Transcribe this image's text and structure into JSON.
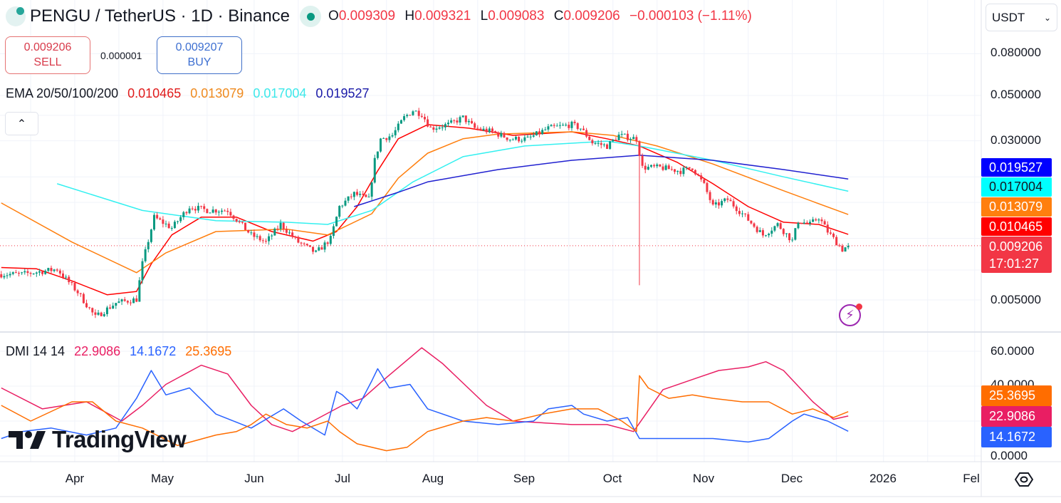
{
  "header": {
    "symbol_title": "PENGU / TetherUS · 1D · Binance",
    "ohlc": {
      "o_label": "O",
      "o": "0.009309",
      "h_label": "H",
      "h": "0.009321",
      "l_label": "L",
      "l": "0.009083",
      "c_label": "C",
      "c": "0.009206",
      "change": "−0.000103 (−1.11%)"
    }
  },
  "trade": {
    "sell_price": "0.009206",
    "sell_label": "SELL",
    "spread": "0.000001",
    "buy_price": "0.009207",
    "buy_label": "BUY"
  },
  "currency_select": {
    "value": "USDT"
  },
  "ema_legend": {
    "name": "EMA 20/50/100/200",
    "v20": "0.010465",
    "v50": "0.013079",
    "v100": "0.017004",
    "v200": "0.019527"
  },
  "dmi_legend": {
    "name": "DMI 14 14",
    "adx": "22.9086",
    "plus_di": "14.1672",
    "minus_di": "25.3695"
  },
  "price_axis": {
    "ticks": [
      "0.080000",
      "0.050000",
      "0.030000",
      "0.005000"
    ],
    "scale": "log"
  },
  "price_tags": {
    "ema200": "0.019527",
    "ema100": "0.017004",
    "ema50": "0.013079",
    "ema20": "0.010465",
    "last": "0.009206",
    "countdown": "17:01:27"
  },
  "dmi_axis": {
    "ticks": [
      "60.0000",
      "40.0000",
      "0.0000"
    ]
  },
  "dmi_tags": {
    "minus_di": "25.3695",
    "adx": "22.9086",
    "plus_di": "14.1672"
  },
  "time_axis": {
    "labels": [
      "Apr",
      "May",
      "Jun",
      "Jul",
      "Aug",
      "Sep",
      "Oct",
      "Nov",
      "Dec",
      "2026",
      "Fel"
    ]
  },
  "watermark": "TradingView",
  "colors": {
    "up": "#089981",
    "down": "#f23645",
    "ema20": "#ff0000",
    "ema50": "#ff7f0e",
    "ema100": "#33f0f0",
    "ema200": "#2020d0",
    "adx": "#e91e63",
    "plus_di": "#2962ff",
    "minus_di": "#ff6d00",
    "last_price": "#f23645"
  },
  "chart_data": [
    {
      "type": "candlestick",
      "title": "PENGU / TetherUS · 1D · Binance",
      "yscale": "log",
      "ylim": [
        0.0035,
        0.095
      ],
      "x_range": [
        "2025-03-06",
        "2026-02-05"
      ],
      "grid": true,
      "close_keypoints": [
        [
          "2025-03-07",
          0.00668
        ],
        [
          "2025-03-14",
          0.00668
        ],
        [
          "2025-03-26",
          0.00707
        ],
        [
          "2025-04-02",
          0.00546
        ],
        [
          "2025-04-08",
          0.00412
        ],
        [
          "2025-04-15",
          0.00484
        ],
        [
          "2025-04-22",
          0.00504
        ],
        [
          "2025-04-24",
          0.00753
        ],
        [
          "2025-04-28",
          0.01268
        ],
        [
          "2025-05-04",
          0.01124
        ],
        [
          "2025-05-10",
          0.0143
        ],
        [
          "2025-05-16",
          0.01374
        ],
        [
          "2025-05-23",
          0.01374
        ],
        [
          "2025-05-31",
          0.01038
        ],
        [
          "2025-06-05",
          0.00958
        ],
        [
          "2025-06-10",
          0.01171
        ],
        [
          "2025-06-16",
          0.00958
        ],
        [
          "2025-06-22",
          0.00849
        ],
        [
          "2025-06-27",
          0.00997
        ],
        [
          "2025-06-30",
          0.0143
        ],
        [
          "2025-07-05",
          0.01653
        ],
        [
          "2025-07-10",
          0.0155
        ],
        [
          "2025-07-12",
          0.0241
        ],
        [
          "2025-07-14",
          0.03066
        ],
        [
          "2025-07-18",
          0.03191
        ],
        [
          "2025-07-22",
          0.03899
        ],
        [
          "2025-07-25",
          0.04225
        ],
        [
          "2025-07-28",
          0.04058
        ],
        [
          "2025-07-31",
          0.03457
        ],
        [
          "2025-08-06",
          0.036
        ],
        [
          "2025-08-11",
          0.03899
        ],
        [
          "2025-08-15",
          0.03457
        ],
        [
          "2025-08-21",
          0.03322
        ],
        [
          "2025-08-27",
          0.03066
        ],
        [
          "2025-09-02",
          0.03066
        ],
        [
          "2025-09-09",
          0.03457
        ],
        [
          "2025-09-17",
          0.036
        ],
        [
          "2025-09-20",
          0.03457
        ],
        [
          "2025-09-24",
          0.02944
        ],
        [
          "2025-09-29",
          0.02829
        ],
        [
          "2025-10-03",
          0.03191
        ],
        [
          "2025-10-09",
          0.03066
        ],
        [
          "2025-10-11",
          0.02223
        ],
        [
          "2025-10-17",
          0.02223
        ],
        [
          "2025-10-24",
          0.02136
        ],
        [
          "2025-10-28",
          0.02223
        ],
        [
          "2025-11-01",
          0.0182
        ],
        [
          "2025-11-04",
          0.0143
        ],
        [
          "2025-11-09",
          0.0155
        ],
        [
          "2025-11-14",
          0.0132
        ],
        [
          "2025-11-21",
          0.01038
        ],
        [
          "2025-11-26",
          0.01171
        ],
        [
          "2025-12-01",
          0.00973
        ],
        [
          "2025-12-03",
          0.01218
        ],
        [
          "2025-12-07",
          0.01171
        ],
        [
          "2025-12-10",
          0.01268
        ],
        [
          "2025-12-13",
          0.0108
        ],
        [
          "2025-12-18",
          0.00884
        ],
        [
          "2025-12-20",
          0.009206
        ]
      ],
      "notable_wick": {
        "date": "2025-10-10",
        "low": 0.0059
      },
      "last_price": 0.009206,
      "series": [
        {
          "name": "EMA 20",
          "points": [
            [
              "2025-03-07",
              0.0072
            ],
            [
              "2025-03-19",
              0.0071
            ],
            [
              "2025-03-31",
              0.0062
            ],
            [
              "2025-04-12",
              0.0053
            ],
            [
              "2025-04-22",
              0.0055
            ],
            [
              "2025-04-27",
              0.0075
            ],
            [
              "2025-05-04",
              0.0104
            ],
            [
              "2025-05-14",
              0.0127
            ],
            [
              "2025-05-26",
              0.0127
            ],
            [
              "2025-06-07",
              0.0108
            ],
            [
              "2025-06-21",
              0.0097
            ],
            [
              "2025-06-29",
              0.0108
            ],
            [
              "2025-07-06",
              0.0143
            ],
            [
              "2025-07-13",
              0.0214
            ],
            [
              "2025-07-20",
              0.0307
            ],
            [
              "2025-07-30",
              0.036
            ],
            [
              "2025-08-13",
              0.0346
            ],
            [
              "2025-08-28",
              0.0319
            ],
            [
              "2025-09-17",
              0.0332
            ],
            [
              "2025-09-29",
              0.0307
            ],
            [
              "2025-10-10",
              0.0283
            ],
            [
              "2025-10-23",
              0.0235
            ],
            [
              "2025-11-04",
              0.0185
            ],
            [
              "2025-11-16",
              0.0143
            ],
            [
              "2025-11-28",
              0.012
            ],
            [
              "2025-12-10",
              0.0117
            ],
            [
              "2025-12-20",
              0.010465
            ]
          ]
        },
        {
          "name": "EMA 50",
          "points": [
            [
              "2025-03-07",
              0.0149
            ],
            [
              "2025-03-31",
              0.0096
            ],
            [
              "2025-04-22",
              0.0068
            ],
            [
              "2025-05-02",
              0.0085
            ],
            [
              "2025-05-19",
              0.0108
            ],
            [
              "2025-06-12",
              0.0111
            ],
            [
              "2025-06-26",
              0.0104
            ],
            [
              "2025-07-11",
              0.0132
            ],
            [
              "2025-07-20",
              0.0197
            ],
            [
              "2025-07-30",
              0.0261
            ],
            [
              "2025-08-11",
              0.0307
            ],
            [
              "2025-08-23",
              0.0324
            ],
            [
              "2025-09-17",
              0.0332
            ],
            [
              "2025-10-01",
              0.0319
            ],
            [
              "2025-10-16",
              0.0283
            ],
            [
              "2025-11-04",
              0.0231
            ],
            [
              "2025-11-28",
              0.0171
            ],
            [
              "2025-12-20",
              0.013079
            ]
          ]
        },
        {
          "name": "EMA 100",
          "points": [
            [
              "2025-03-26",
              0.0185
            ],
            [
              "2025-04-24",
              0.0137
            ],
            [
              "2025-05-19",
              0.0122
            ],
            [
              "2025-06-12",
              0.012
            ],
            [
              "2025-06-26",
              0.0117
            ],
            [
              "2025-07-11",
              0.0137
            ],
            [
              "2025-07-25",
              0.0189
            ],
            [
              "2025-08-11",
              0.0251
            ],
            [
              "2025-09-01",
              0.0283
            ],
            [
              "2025-09-29",
              0.0299
            ],
            [
              "2025-10-10",
              0.0283
            ],
            [
              "2025-11-04",
              0.0241
            ],
            [
              "2025-11-28",
              0.02
            ],
            [
              "2025-12-20",
              0.017004
            ]
          ]
        },
        {
          "name": "EMA 200",
          "points": [
            [
              "2025-07-05",
              0.0143
            ],
            [
              "2025-07-20",
              0.0168
            ],
            [
              "2025-07-30",
              0.0189
            ],
            [
              "2025-08-23",
              0.0217
            ],
            [
              "2025-09-17",
              0.0241
            ],
            [
              "2025-10-10",
              0.0255
            ],
            [
              "2025-11-04",
              0.0241
            ],
            [
              "2025-11-28",
              0.0217
            ],
            [
              "2025-12-20",
              0.019527
            ]
          ]
        }
      ]
    },
    {
      "type": "line",
      "title": "DMI 14 14",
      "ylim": [
        0,
        62
      ],
      "grid": true,
      "series": [
        {
          "name": "ADX",
          "points": [
            [
              "2025-03-07",
              39
            ],
            [
              "2025-03-21",
              27
            ],
            [
              "2025-04-05",
              31
            ],
            [
              "2025-04-17",
              20
            ],
            [
              "2025-04-24",
              29
            ],
            [
              "2025-05-02",
              41
            ],
            [
              "2025-05-14",
              52
            ],
            [
              "2025-05-23",
              47
            ],
            [
              "2025-05-31",
              29
            ],
            [
              "2025-06-07",
              18
            ],
            [
              "2025-06-14",
              14
            ],
            [
              "2025-06-21",
              20
            ],
            [
              "2025-07-01",
              29
            ],
            [
              "2025-07-08",
              33
            ],
            [
              "2025-07-16",
              45
            ],
            [
              "2025-07-28",
              62
            ],
            [
              "2025-08-04",
              53
            ],
            [
              "2025-08-19",
              29
            ],
            [
              "2025-08-28",
              20
            ],
            [
              "2025-09-17",
              18
            ],
            [
              "2025-09-29",
              18
            ],
            [
              "2025-10-08",
              14
            ],
            [
              "2025-10-18",
              38
            ],
            [
              "2025-10-30",
              45
            ],
            [
              "2025-11-06",
              49
            ],
            [
              "2025-11-16",
              51
            ],
            [
              "2025-11-22",
              54
            ],
            [
              "2025-11-28",
              49
            ],
            [
              "2025-12-08",
              31
            ],
            [
              "2025-12-15",
              21
            ],
            [
              "2025-12-20",
              22.9086
            ]
          ]
        },
        {
          "name": "+DI",
          "points": [
            [
              "2025-03-07",
              10
            ],
            [
              "2025-03-14",
              14
            ],
            [
              "2025-03-24",
              16
            ],
            [
              "2025-04-05",
              12
            ],
            [
              "2025-04-15",
              16
            ],
            [
              "2025-04-22",
              33
            ],
            [
              "2025-04-27",
              49
            ],
            [
              "2025-05-02",
              35
            ],
            [
              "2025-05-10",
              39
            ],
            [
              "2025-05-19",
              24
            ],
            [
              "2025-05-31",
              16
            ],
            [
              "2025-06-11",
              27
            ],
            [
              "2025-06-17",
              20
            ],
            [
              "2025-06-25",
              12
            ],
            [
              "2025-06-29",
              37
            ],
            [
              "2025-07-01",
              35
            ],
            [
              "2025-07-06",
              27
            ],
            [
              "2025-07-11",
              43
            ],
            [
              "2025-07-13",
              50
            ],
            [
              "2025-07-17",
              39
            ],
            [
              "2025-07-24",
              41
            ],
            [
              "2025-07-30",
              27
            ],
            [
              "2025-08-11",
              20
            ],
            [
              "2025-08-23",
              18
            ],
            [
              "2025-09-04",
              20
            ],
            [
              "2025-09-09",
              27
            ],
            [
              "2025-09-17",
              29
            ],
            [
              "2025-09-21",
              24
            ],
            [
              "2025-09-29",
              20
            ],
            [
              "2025-10-06",
              22
            ],
            [
              "2025-10-10",
              10
            ],
            [
              "2025-10-23",
              10
            ],
            [
              "2025-11-04",
              10
            ],
            [
              "2025-11-16",
              8
            ],
            [
              "2025-11-23",
              10
            ],
            [
              "2025-12-01",
              20
            ],
            [
              "2025-12-05",
              24
            ],
            [
              "2025-12-13",
              20
            ],
            [
              "2025-12-20",
              14.1672
            ]
          ]
        },
        {
          "name": "-DI",
          "points": [
            [
              "2025-03-07",
              29
            ],
            [
              "2025-03-17",
              20
            ],
            [
              "2025-03-31",
              31
            ],
            [
              "2025-04-07",
              31
            ],
            [
              "2025-04-15",
              20
            ],
            [
              "2025-04-24",
              16
            ],
            [
              "2025-05-06",
              6
            ],
            [
              "2025-05-19",
              12
            ],
            [
              "2025-05-26",
              14
            ],
            [
              "2025-05-31",
              18
            ],
            [
              "2025-06-05",
              24
            ],
            [
              "2025-06-12",
              18
            ],
            [
              "2025-06-19",
              16
            ],
            [
              "2025-06-26",
              20
            ],
            [
              "2025-06-30",
              14
            ],
            [
              "2025-07-06",
              7
            ],
            [
              "2025-07-16",
              3
            ],
            [
              "2025-07-23",
              5
            ],
            [
              "2025-07-30",
              14
            ],
            [
              "2025-08-11",
              20
            ],
            [
              "2025-08-19",
              22
            ],
            [
              "2025-08-28",
              20
            ],
            [
              "2025-09-07",
              24
            ],
            [
              "2025-09-17",
              27
            ],
            [
              "2025-09-26",
              27
            ],
            [
              "2025-10-04",
              20
            ],
            [
              "2025-10-09",
              14
            ],
            [
              "2025-10-10",
              46
            ],
            [
              "2025-10-13",
              39
            ],
            [
              "2025-10-20",
              33
            ],
            [
              "2025-10-28",
              35
            ],
            [
              "2025-11-04",
              33
            ],
            [
              "2025-11-14",
              31
            ],
            [
              "2025-11-23",
              31
            ],
            [
              "2025-12-01",
              24
            ],
            [
              "2025-12-08",
              27
            ],
            [
              "2025-12-15",
              22
            ],
            [
              "2025-12-20",
              25.3695
            ]
          ]
        }
      ]
    }
  ]
}
